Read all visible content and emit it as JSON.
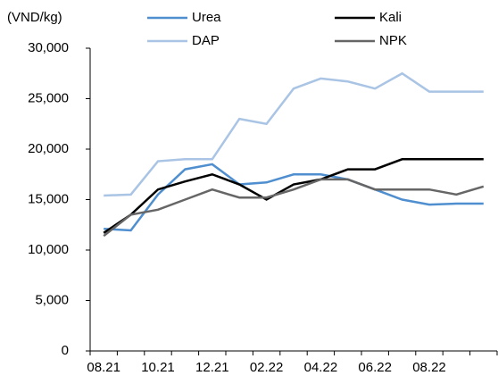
{
  "chart_data": {
    "type": "line",
    "y_label": "(VND/kg)",
    "categories": [
      "08.21",
      null,
      "10.21",
      null,
      "12.21",
      null,
      "02.22",
      null,
      "04.22",
      null,
      "06.22",
      null,
      "08.22",
      null,
      null
    ],
    "series": [
      {
        "name": "Urea",
        "color": "#4f8fcf",
        "values": [
          12100,
          11950,
          15500,
          18000,
          18500,
          16500,
          16700,
          17500,
          17500,
          17000,
          16000,
          15000,
          14500,
          14600,
          14600
        ]
      },
      {
        "name": "Kali",
        "color": "#000000",
        "values": [
          11700,
          13500,
          16000,
          16800,
          17500,
          16500,
          15000,
          16500,
          17000,
          18000,
          18000,
          19000,
          19000,
          19000,
          19000
        ]
      },
      {
        "name": "DAP",
        "color": "#a9c4e4",
        "values": [
          15400,
          15500,
          18800,
          19000,
          19000,
          23000,
          22500,
          26000,
          27000,
          26700,
          26000,
          27500,
          25700,
          25700,
          25700
        ]
      },
      {
        "name": "NPK",
        "color": "#666666",
        "values": [
          11400,
          13500,
          14000,
          15000,
          16000,
          15200,
          15200,
          16000,
          17000,
          17000,
          16000,
          16000,
          16000,
          15500,
          16300
        ]
      }
    ],
    "ylim": [
      0,
      30000
    ],
    "yticks": [
      {
        "value": 0,
        "label": "0"
      },
      {
        "value": 5000,
        "label": "5,000"
      },
      {
        "value": 10000,
        "label": "10,000"
      },
      {
        "value": 15000,
        "label": "15,000"
      },
      {
        "value": 20000,
        "label": "20,000"
      },
      {
        "value": 25000,
        "label": "25,000"
      },
      {
        "value": 30000,
        "label": "30,000"
      }
    ],
    "grid": false,
    "legend": "top"
  }
}
